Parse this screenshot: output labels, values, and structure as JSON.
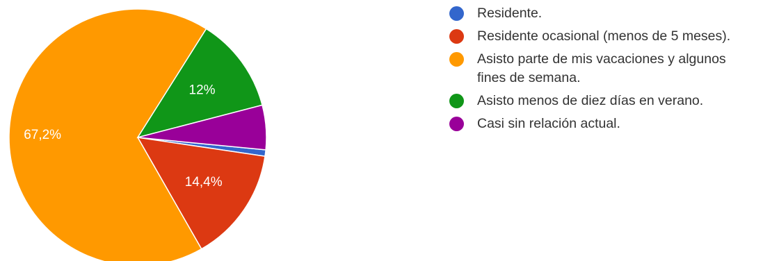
{
  "chart_data": {
    "type": "pie",
    "slices": [
      {
        "label": "Residente.",
        "value": 0.8,
        "color": "#3366cc",
        "data_label": ""
      },
      {
        "label": "Residente ocasional (menos de 5 meses).",
        "value": 14.4,
        "color": "#dc3912",
        "data_label": "14,4%"
      },
      {
        "label": "Asisto parte de mis vacaciones y algunos fines de semana.",
        "value": 67.2,
        "color": "#ff9900",
        "data_label": "67,2%"
      },
      {
        "label": "Asisto menos de diez días en verano.",
        "value": 12.0,
        "color": "#109618",
        "data_label": "12%"
      },
      {
        "label": "Casi sin relación actual.",
        "value": 5.6,
        "color": "#990099",
        "data_label": ""
      }
    ],
    "legend_position": "right"
  }
}
